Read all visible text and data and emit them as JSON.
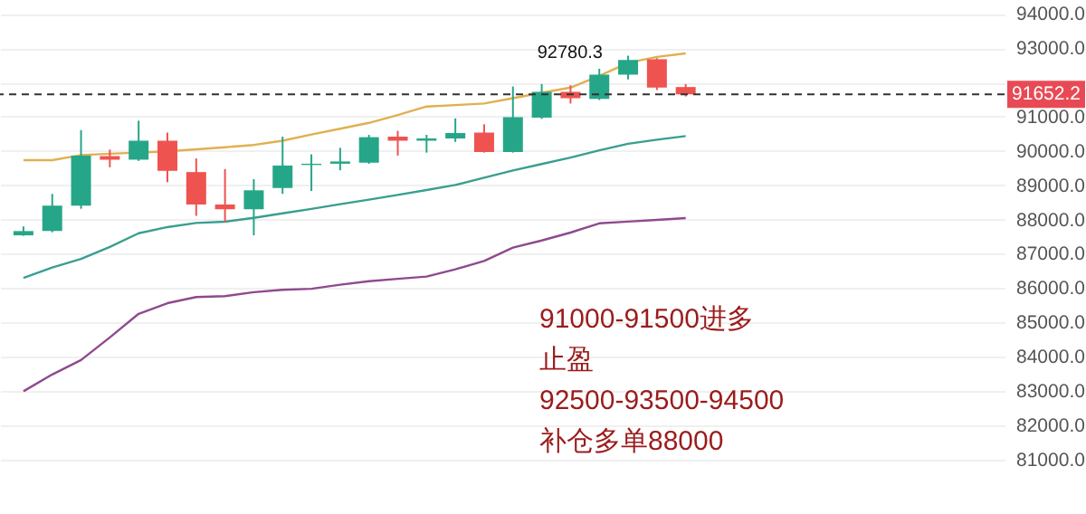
{
  "chart_data": {
    "type": "candlestick",
    "categories": [
      null,
      null,
      null,
      null,
      null,
      null,
      null,
      null,
      null,
      null,
      null,
      null,
      null,
      null,
      null,
      null,
      null,
      null,
      null,
      null,
      null,
      null,
      null,
      null
    ],
    "ohlc": [
      [
        87540,
        87798,
        87524,
        87664
      ],
      [
        87664,
        88749,
        87628,
        88403
      ],
      [
        88403,
        90610,
        88315,
        89866
      ],
      [
        89850,
        90041,
        89525,
        89747
      ],
      [
        89747,
        90884,
        89711,
        90300
      ],
      [
        90300,
        90537,
        89090,
        89421
      ],
      [
        89385,
        89783,
        88109,
        88439
      ],
      [
        88439,
        89473,
        87922,
        88300
      ],
      [
        88300,
        89178,
        87540,
        88853
      ],
      [
        88920,
        90419,
        88749,
        89576
      ],
      [
        89592,
        89902,
        88832,
        89628
      ],
      [
        89628,
        90093,
        89437,
        89695
      ],
      [
        89659,
        90470,
        89628,
        90403
      ],
      [
        90419,
        90589,
        89866,
        90300
      ],
      [
        90300,
        90470,
        89953,
        90367
      ],
      [
        90367,
        90951,
        90264,
        90522
      ],
      [
        90537,
        90780,
        89953,
        89969
      ],
      [
        89969,
        91881,
        89953,
        90987
      ],
      [
        90972,
        91953,
        90935,
        91726
      ],
      [
        91726,
        91917,
        91385,
        91540
      ],
      [
        91519,
        92398,
        91488,
        92227
      ],
      [
        92227,
        92780.3,
        92088,
        92656
      ],
      [
        92677,
        92708,
        91778,
        91850
      ],
      [
        91866,
        91953,
        91592,
        91652.2
      ]
    ],
    "colors": [
      "#26a688",
      "#26a688",
      "#26a688",
      "#ef5350",
      "#26a688",
      "#ef5350",
      "#ef5350",
      "#ef5350",
      "#26a688",
      "#26a688",
      "#26a688",
      "#26a688",
      "#26a688",
      "#ef5350",
      "#26a688",
      "#26a688",
      "#ef5350",
      "#26a688",
      "#26a688",
      "#ef5350",
      "#26a688",
      "#26a688",
      "#ef5350",
      "#ef5350"
    ],
    "series": [
      {
        "type": "line",
        "color": "#e0b050",
        "values": [
          89731,
          89731,
          89880,
          89920,
          89953,
          89990,
          90050,
          90110,
          90176,
          90300,
          90480,
          90650,
          90820,
          91050,
          91297,
          91340,
          91385,
          91540,
          91700,
          91850,
          92191,
          92574,
          92744,
          92848
        ]
      },
      {
        "type": "line",
        "color": "#3a9e90",
        "values": [
          86300,
          86600,
          86850,
          87200,
          87600,
          87780,
          87900,
          87938,
          88050,
          88180,
          88310,
          88450,
          88580,
          88720,
          88860,
          89008,
          89220,
          89430,
          89620,
          89810,
          90020,
          90212,
          90330,
          90434
        ]
      },
      {
        "type": "line",
        "color": "#8e4a8e",
        "values": [
          82990,
          83480,
          83900,
          84560,
          85250,
          85560,
          85740,
          85767,
          85880,
          85950,
          85980,
          86100,
          86200,
          86270,
          86336,
          86550,
          86790,
          87180,
          87390,
          87620,
          87890,
          87940,
          87990,
          88041
        ]
      }
    ],
    "ylim": [
      79410,
      94088
    ],
    "yticks": [
      {
        "value": 81000,
        "label": "81000.0"
      },
      {
        "value": 82000,
        "label": "82000.0"
      },
      {
        "value": 83000,
        "label": "83000.0"
      },
      {
        "value": 84000,
        "label": "84000.0"
      },
      {
        "value": 85000,
        "label": "85000.0"
      },
      {
        "value": 86000,
        "label": "86000.0"
      },
      {
        "value": 87000,
        "label": "87000.0"
      },
      {
        "value": 88000,
        "label": "88000.0"
      },
      {
        "value": 89000,
        "label": "89000.0"
      },
      {
        "value": 90000,
        "label": "90000.0"
      },
      {
        "value": 91000,
        "label": "91000.0"
      },
      {
        "value": 92000,
        "label": null
      },
      {
        "value": 93000,
        "label": "93000.0"
      },
      {
        "value": 94000,
        "label": "94000.0"
      }
    ],
    "tick_labels": "y",
    "grid": "y",
    "ref_lines": [
      {
        "axis": "y",
        "value": 91652.2,
        "label": "91652.2",
        "color": "#333333",
        "line_style": "dashed"
      }
    ],
    "annotations": [
      "92780.3",
      "91000-91500进多",
      "止盈",
      "92500-93500-94500",
      "补仓多单88000"
    ]
  }
}
